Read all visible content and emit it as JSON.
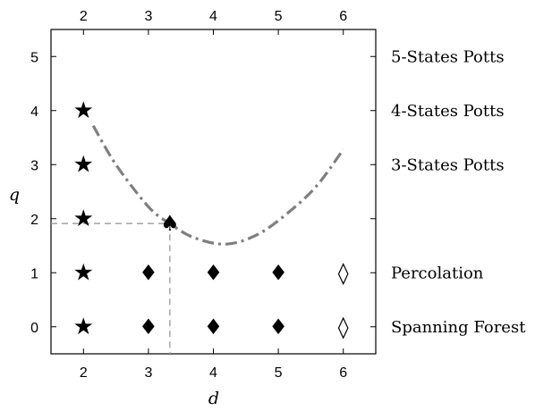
{
  "chart_data": {
    "type": "scatter",
    "xlabel": "d",
    "ylabel": "q",
    "xlim": [
      1.5,
      6.5
    ],
    "ylim": [
      -0.5,
      5.5
    ],
    "x_ticks": [
      "2",
      "3",
      "4",
      "5",
      "6"
    ],
    "y_ticks": [
      "0",
      "1",
      "2",
      "3",
      "4",
      "5"
    ],
    "right_labels": [
      {
        "q": 5,
        "text": "5-States Potts"
      },
      {
        "q": 4,
        "text": "4-States Potts"
      },
      {
        "q": 3,
        "text": "3-States Potts"
      },
      {
        "q": 1,
        "text": "Percolation"
      },
      {
        "q": 0,
        "text": "Spanning Forest"
      }
    ],
    "markers": [
      {
        "d": 2,
        "q": 4,
        "symbol": "★"
      },
      {
        "d": 2,
        "q": 3,
        "symbol": "★"
      },
      {
        "d": 2,
        "q": 2,
        "symbol": "★"
      },
      {
        "d": 2,
        "q": 1,
        "symbol": "★"
      },
      {
        "d": 2,
        "q": 0,
        "symbol": "★"
      },
      {
        "d": 3,
        "q": 1,
        "symbol": "♦"
      },
      {
        "d": 4,
        "q": 1,
        "symbol": "♦"
      },
      {
        "d": 5,
        "q": 1,
        "symbol": "♦"
      },
      {
        "d": 3,
        "q": 0,
        "symbol": "♦"
      },
      {
        "d": 4,
        "q": 0,
        "symbol": "♦"
      },
      {
        "d": 5,
        "q": 0,
        "symbol": "♦"
      },
      {
        "d": 6,
        "q": 1,
        "symbol": "◊"
      },
      {
        "d": 6,
        "q": 0,
        "symbol": "◊"
      },
      {
        "d": 3.33,
        "q": 1.91,
        "symbol": "♠"
      }
    ],
    "curve": {
      "style": "dash-dot",
      "color": "#7f7f7f",
      "points": [
        [
          2.15,
          3.72
        ],
        [
          2.5,
          3.0
        ],
        [
          3.0,
          2.22
        ],
        [
          3.33,
          1.91
        ],
        [
          3.7,
          1.65
        ],
        [
          4.2,
          1.53
        ],
        [
          4.7,
          1.72
        ],
        [
          5.2,
          2.16
        ],
        [
          5.6,
          2.62
        ],
        [
          6.0,
          3.28
        ]
      ]
    },
    "guide_lines": {
      "d": 3.33,
      "q": 1.91,
      "color": "#999999"
    }
  }
}
